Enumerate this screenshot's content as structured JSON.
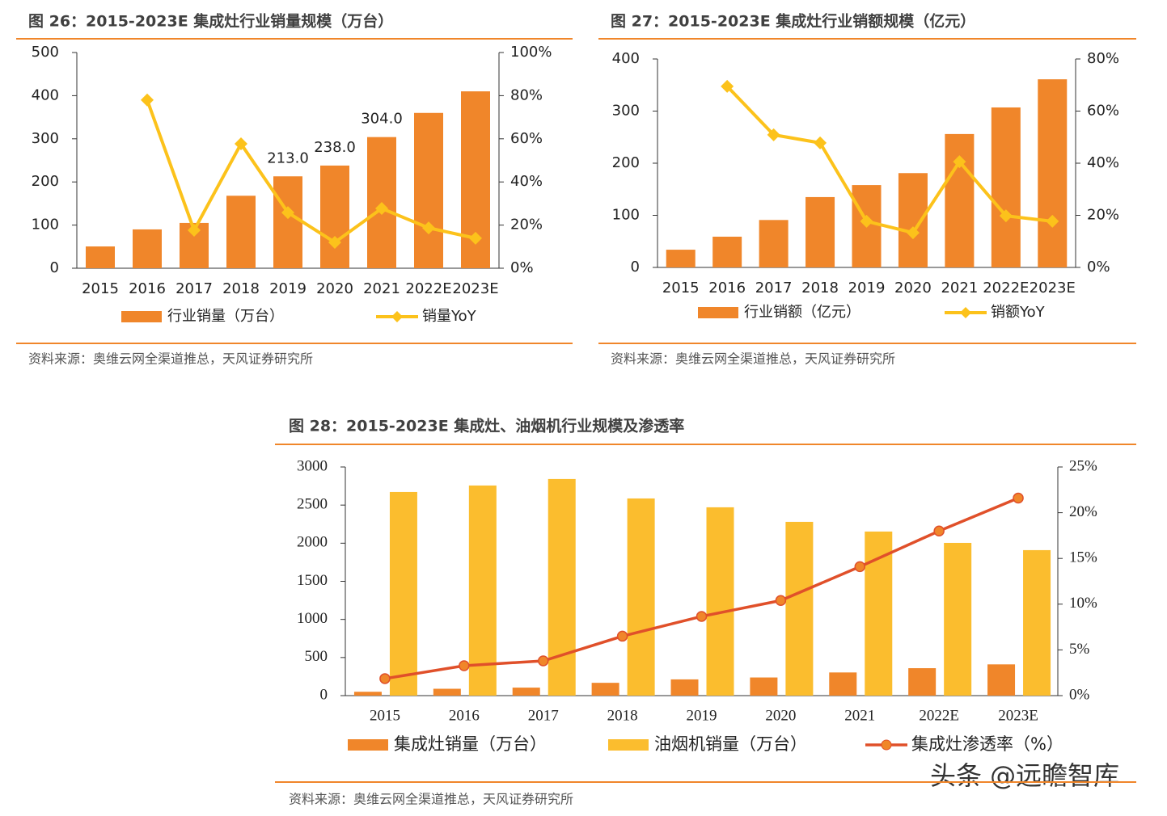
{
  "chart_data": [
    {
      "type": "combo",
      "title": "图 26：2015-2023E 集成灶行业销量规模（万台）",
      "categories": [
        "2015",
        "2016",
        "2017",
        "2018",
        "2019",
        "2020",
        "2021",
        "2022E",
        "2023E"
      ],
      "series": [
        {
          "name": "行业销量（万台）",
          "type": "bar",
          "color": "#f0862a",
          "values": [
            50.5,
            90,
            105,
            168,
            213,
            238,
            304,
            360,
            410
          ],
          "value_labels": [
            null,
            null,
            null,
            null,
            "213.0",
            "238.0",
            "304.0",
            null,
            null
          ]
        },
        {
          "name": "销量YoY",
          "type": "line",
          "axis": "y2",
          "marker": "diamond",
          "color": "#fcc21b",
          "values": [
            null,
            78,
            17.6,
            57.7,
            25.8,
            12,
            27.7,
            18.7,
            13.9
          ]
        }
      ],
      "ylim": [
        0,
        500
      ],
      "yticks": [
        0,
        100,
        200,
        300,
        400,
        500
      ],
      "y2lim": [
        0,
        100
      ],
      "y2ticks": [
        {
          "value": 0,
          "label": "0%"
        },
        {
          "value": 20,
          "label": "20%"
        },
        {
          "value": 40,
          "label": "40%"
        },
        {
          "value": 60,
          "label": "60%"
        },
        {
          "value": 80,
          "label": "80%"
        },
        {
          "value": 100,
          "label": "100%"
        }
      ],
      "source": "资料来源：奥维云网全渠道推总，天风证券研究所"
    },
    {
      "type": "combo",
      "title": "图 27：2015-2023E 集成灶行业销额规模（亿元）",
      "categories": [
        "2015",
        "2016",
        "2017",
        "2018",
        "2019",
        "2020",
        "2021",
        "2022E",
        "2023E"
      ],
      "series": [
        {
          "name": "行业销额（亿元）",
          "type": "bar",
          "color": "#f0862a",
          "values": [
            34,
            59,
            91,
            135,
            158,
            181,
            256,
            307,
            361
          ]
        },
        {
          "name": "销额YoY",
          "type": "line",
          "axis": "y2",
          "marker": "diamond",
          "color": "#fcc21b",
          "values": [
            null,
            69.5,
            50.9,
            47.8,
            17.7,
            13.3,
            40.6,
            19.8,
            17.7
          ]
        }
      ],
      "ylim": [
        0,
        400
      ],
      "yticks": [
        0,
        100,
        200,
        300,
        400
      ],
      "y2lim": [
        0,
        80
      ],
      "y2ticks": [
        {
          "value": 0,
          "label": "0%"
        },
        {
          "value": 20,
          "label": "20%"
        },
        {
          "value": 40,
          "label": "40%"
        },
        {
          "value": 60,
          "label": "60%"
        },
        {
          "value": 80,
          "label": "80%"
        }
      ],
      "source": "资料来源：奥维云网全渠道推总，天风证券研究所"
    },
    {
      "type": "combo",
      "title": "图 28：2015-2023E 集成灶、油烟机行业规模及渗透率",
      "categories": [
        "2015",
        "2016",
        "2017",
        "2018",
        "2019",
        "2020",
        "2021",
        "2022E",
        "2023E"
      ],
      "series": [
        {
          "name": "集成灶销量（万台）",
          "type": "bar",
          "color": "#f0862a",
          "values": [
            50.5,
            90,
            105,
            168,
            213,
            238,
            304,
            360,
            410
          ]
        },
        {
          "name": "油烟机销量（万台）",
          "type": "bar",
          "color": "#fbbd2e",
          "values": [
            2672,
            2757,
            2842,
            2587,
            2471,
            2280,
            2153,
            2004,
            1909
          ]
        },
        {
          "name": "集成灶渗透率（%）",
          "type": "line",
          "axis": "y2",
          "marker": "circle",
          "color": "#e0502a",
          "values": [
            1.86,
            3.27,
            3.8,
            6.5,
            8.66,
            10.4,
            14.1,
            18.0,
            21.6
          ]
        }
      ],
      "ylim": [
        0,
        3000
      ],
      "yticks": [
        0,
        500,
        1000,
        1500,
        2000,
        2500,
        3000
      ],
      "y2lim": [
        0,
        25
      ],
      "y2ticks": [
        {
          "value": 0,
          "label": "0%"
        },
        {
          "value": 5,
          "label": "5%"
        },
        {
          "value": 10,
          "label": "10%"
        },
        {
          "value": 15,
          "label": "15%"
        },
        {
          "value": 20,
          "label": "20%"
        },
        {
          "value": 25,
          "label": "25%"
        }
      ],
      "source": "资料来源：奥维云网全渠道推总，天风证券研究所"
    }
  ],
  "watermark": "头条 @远瞻智库"
}
